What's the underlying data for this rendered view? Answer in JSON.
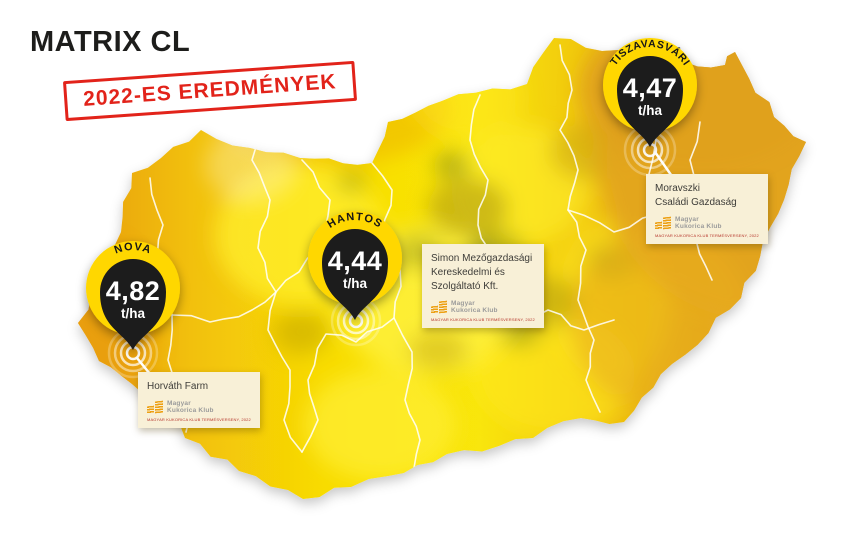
{
  "header": {
    "title": "MATRIX CL",
    "stamp": "2022-ES EREDMÉNYEK"
  },
  "pins": [
    {
      "location": "NOVA",
      "value": "4,82",
      "unit": "t/ha",
      "farm_lines": [
        "Horváth Farm"
      ]
    },
    {
      "location": "HANTOS",
      "value": "4,44",
      "unit": "t/ha",
      "farm_lines": [
        "Simon Mezőgazdasági",
        "Kereskedelmi és",
        "Szolgáltató Kft."
      ]
    },
    {
      "location": "TISZAVASVÁRI",
      "value": "4,47",
      "unit": "t/ha",
      "farm_lines": [
        "Moravszki",
        "Családi Gazdaság"
      ]
    }
  ],
  "logo": {
    "name": "Magyar Kukorica Klub",
    "line1": "Magyar",
    "line2": "Kukorica Klub",
    "subtext": "MAGYAR KUKORICA KLUB TERMÉSVERSENY, 2022"
  },
  "colors": {
    "stamp_red": "#e2231a",
    "pin_yellow": "#ffd705",
    "pin_black": "#1a1a1a",
    "map_west_orange": "#eda311",
    "map_center_yellow": "#f8e203",
    "map_east_gold": "#dfa11c",
    "card_cream": "#f8f0d7"
  }
}
